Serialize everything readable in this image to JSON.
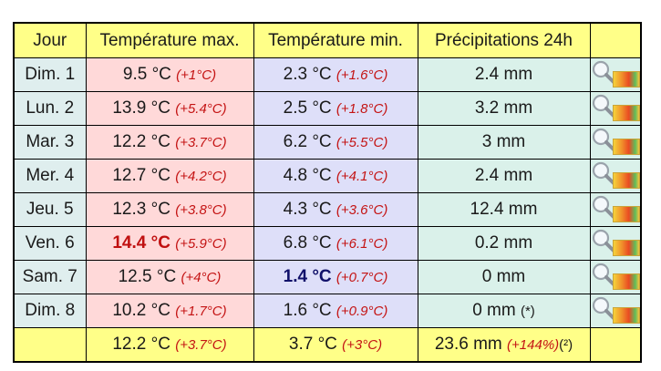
{
  "headers": {
    "day": "Jour",
    "max": "Température max.",
    "min": "Température min.",
    "precip": "Précipitations 24h",
    "icon": ""
  },
  "rows": [
    {
      "day": "Dim. 1",
      "max": "9.5 °C",
      "max_delta": "(+1°C)",
      "min": "2.3 °C",
      "min_delta": "(+1.6°C)",
      "precip": "2.4 mm",
      "precip_note": ""
    },
    {
      "day": "Lun. 2",
      "max": "13.9 °C",
      "max_delta": "(+5.4°C)",
      "min": "2.5 °C",
      "min_delta": "(+1.8°C)",
      "precip": "3.2 mm",
      "precip_note": ""
    },
    {
      "day": "Mar. 3",
      "max": "12.2 °C",
      "max_delta": "(+3.7°C)",
      "min": "6.2 °C",
      "min_delta": "(+5.5°C)",
      "precip": "3 mm",
      "precip_note": ""
    },
    {
      "day": "Mer. 4",
      "max": "12.7 °C",
      "max_delta": "(+4.2°C)",
      "min": "4.8 °C",
      "min_delta": "(+4.1°C)",
      "precip": "2.4 mm",
      "precip_note": ""
    },
    {
      "day": "Jeu. 5",
      "max": "12.3 °C",
      "max_delta": "(+3.8°C)",
      "min": "4.3 °C",
      "min_delta": "(+3.6°C)",
      "precip": "12.4 mm",
      "precip_note": ""
    },
    {
      "day": "Ven. 6",
      "max": "14.4 °C",
      "max_delta": "(+5.9°C)",
      "min": "6.8 °C",
      "min_delta": "(+6.1°C)",
      "precip": "0.2 mm",
      "precip_note": "",
      "max_highlight": true
    },
    {
      "day": "Sam. 7",
      "max": "12.5 °C",
      "max_delta": "(+4°C)",
      "min": "1.4 °C",
      "min_delta": "(+0.7°C)",
      "precip": "0 mm",
      "precip_note": "",
      "min_highlight": true
    },
    {
      "day": "Dim. 8",
      "max": "10.2 °C",
      "max_delta": "(+1.7°C)",
      "min": "1.6 °C",
      "min_delta": "(+0.9°C)",
      "precip": "0 mm",
      "precip_note": "(*)"
    }
  ],
  "footer": {
    "day": "",
    "max": "12.2 °C",
    "max_delta": "(+3.7°C)",
    "min": "3.7 °C",
    "min_delta": "(+3°C)",
    "precip": "23.6 mm",
    "precip_delta": "(+144%)",
    "precip_note": "(²)"
  },
  "icons": {
    "detail": "magnifier-icon",
    "map": "heatmap-icon"
  },
  "colors": {
    "header_bg": "#ffff88",
    "day_bg": "#dfeeee",
    "max_bg": "#ffd9d9",
    "min_bg": "#dedff9",
    "precip_bg": "#daf1ea",
    "delta": "#c41414",
    "max_highlight": "#c01010",
    "min_highlight": "#10106a"
  }
}
